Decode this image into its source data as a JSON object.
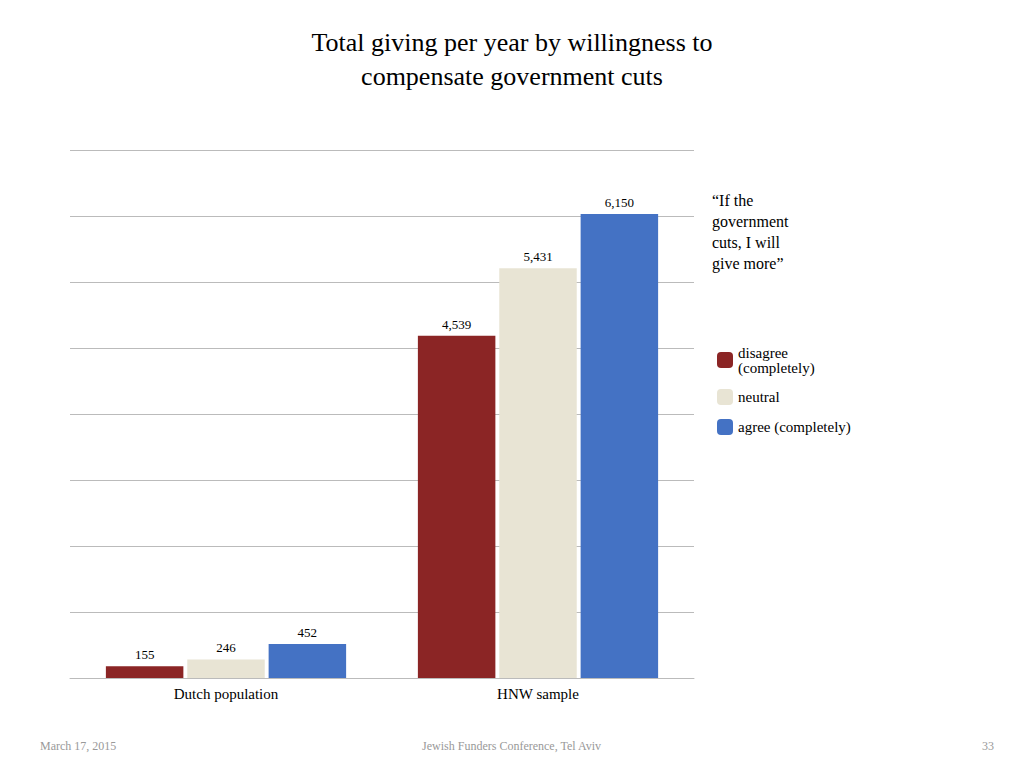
{
  "chart_data": {
    "type": "bar",
    "title": "Total giving per year by willingness to\ncompensate government cuts",
    "categories": [
      "Dutch population",
      "HNW sample"
    ],
    "series": [
      {
        "name": "disagree\n(completely)",
        "color": "#8B2525",
        "values": [
          155,
          4539
        ],
        "value_labels": [
          "155",
          "4,539"
        ]
      },
      {
        "name": "neutral",
        "color": "#E8E4D4",
        "values": [
          246,
          5431
        ],
        "value_labels": [
          "246",
          "5,431"
        ]
      },
      {
        "name": "agree (completely)",
        "color": "#4472C4",
        "values": [
          452,
          6150
        ],
        "value_labels": [
          "452",
          "6,150"
        ]
      }
    ],
    "ylim": [
      0,
      7000
    ],
    "yticks": [
      0,
      875,
      1750,
      2625,
      3500,
      4375,
      5250,
      6125,
      7000
    ],
    "grid": true,
    "legend": "right",
    "tick_labels": "x",
    "data_labels": true,
    "annotations": [
      "“If the\ngovernment\ncuts, I will\ngive more”",
      "March 17, 2015",
      "Jewish Funders Conference, Tel Aviv",
      "33"
    ]
  }
}
